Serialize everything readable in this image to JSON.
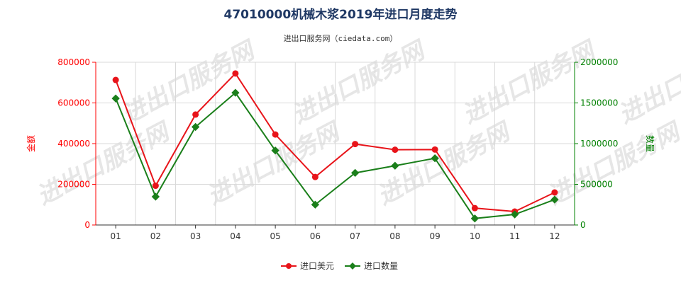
{
  "chart_data": {
    "type": "line",
    "title": "47010000机械木浆2019年进口月度走势",
    "subtitle": "进出口服务网（ciedata.com）",
    "watermark": "进出口服务网",
    "categories": [
      "01",
      "02",
      "03",
      "04",
      "05",
      "06",
      "07",
      "08",
      "09",
      "10",
      "11",
      "12"
    ],
    "y_left": {
      "label": "金额",
      "lim": [
        0,
        800000
      ],
      "ticks": [
        "0",
        "200000",
        "400000",
        "600000",
        "800000"
      ],
      "color": "#ff0000"
    },
    "y_right": {
      "label": "数量",
      "lim": [
        0,
        2000000
      ],
      "ticks": [
        "0",
        "500000",
        "1000000",
        "1500000",
        "2000000"
      ],
      "color": "#008000"
    },
    "grid": true,
    "legend_position": "bottom-center",
    "series": [
      {
        "name": "进口美元",
        "axis": "left",
        "color": "#e8141a",
        "values": [
          713000,
          193000,
          543000,
          745000,
          445000,
          236000,
          398000,
          370000,
          371000,
          83000,
          66000,
          160000
        ]
      },
      {
        "name": "进口数量",
        "axis": "right",
        "color": "#1a7f1a",
        "values": [
          1555000,
          348000,
          1205000,
          1625000,
          915000,
          250000,
          640000,
          728000,
          820000,
          80000,
          130000,
          312000
        ]
      }
    ]
  }
}
